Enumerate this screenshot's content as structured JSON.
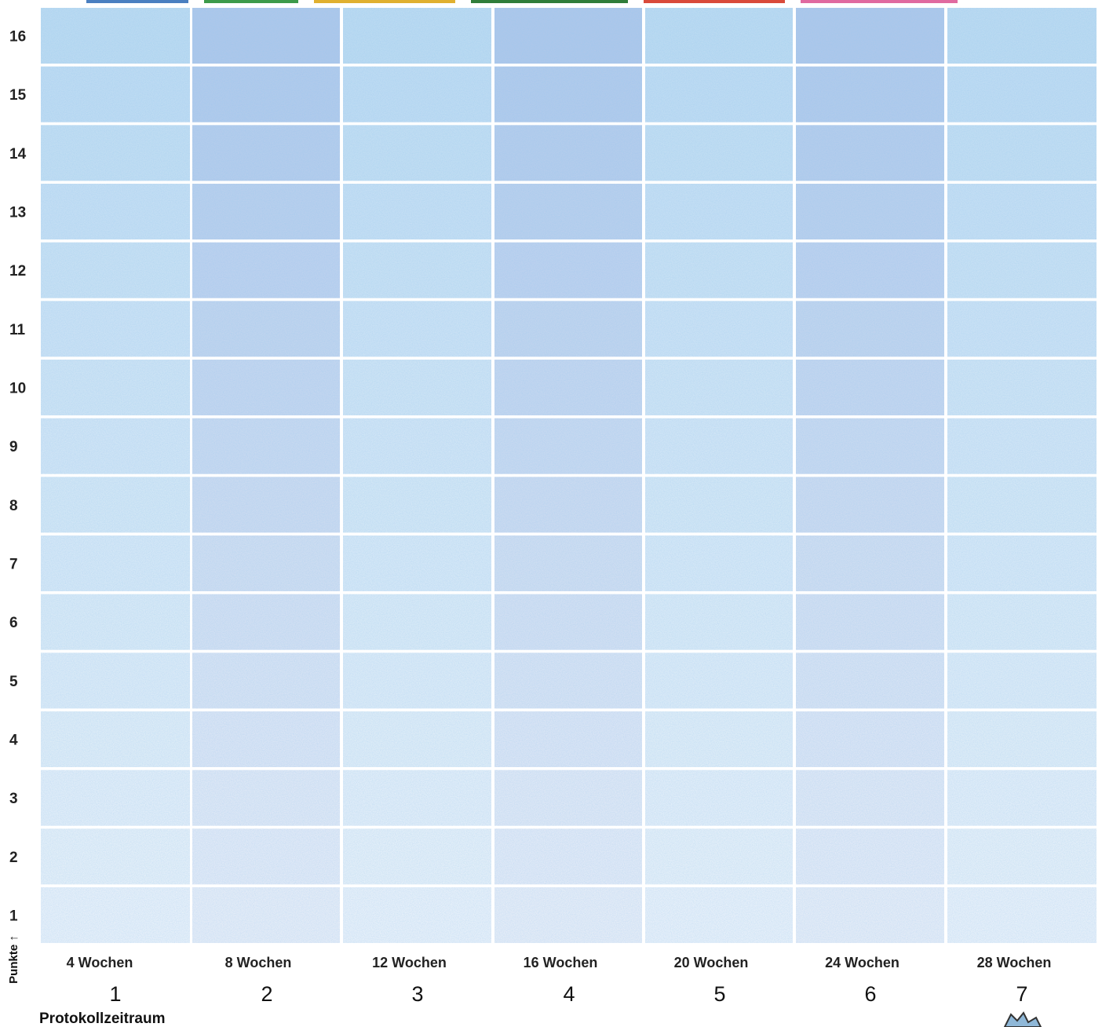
{
  "y_labels": [
    "1",
    "2",
    "3",
    "4",
    "5",
    "6",
    "7",
    "8",
    "9",
    "10",
    "11",
    "12",
    "13",
    "14",
    "15",
    "16"
  ],
  "y_axis_label": "Punkte ↑",
  "columns": [
    {
      "label": "4 Wochen",
      "number": "1"
    },
    {
      "label": "8 Wochen",
      "number": "2"
    },
    {
      "label": "12 Wochen",
      "number": "3"
    },
    {
      "label": "16 Wochen",
      "number": "4"
    },
    {
      "label": "20 Wochen",
      "number": "5"
    },
    {
      "label": "24 Wochen",
      "number": "6"
    },
    {
      "label": "28 Wochen",
      "number": "7"
    }
  ],
  "x_axis_label": "Protokollzeitraum"
}
